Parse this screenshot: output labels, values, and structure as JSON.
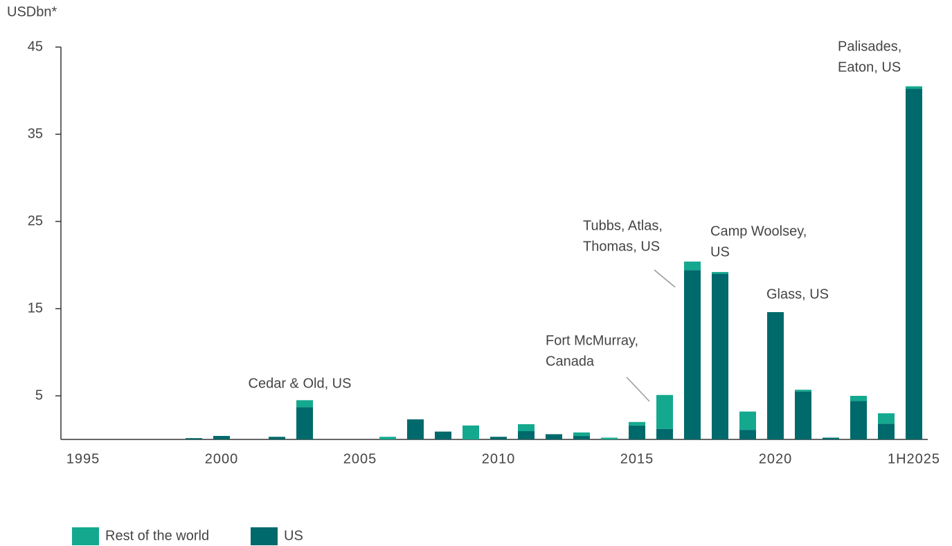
{
  "chart_data": {
    "type": "stacked_bar",
    "y_label": "USDbn*",
    "categories": [
      "1995",
      null,
      null,
      null,
      null,
      "2000",
      null,
      null,
      null,
      null,
      "2005",
      null,
      null,
      null,
      null,
      "2010",
      null,
      null,
      null,
      null,
      "2015",
      null,
      null,
      null,
      null,
      "2020",
      null,
      null,
      null,
      null,
      "1H2025"
    ],
    "series": [
      {
        "name": "Rest of the world",
        "color": "#14a98f",
        "values": [
          0,
          0,
          0,
          0,
          0,
          0,
          0,
          0,
          0.8,
          0,
          0,
          0.3,
          0,
          0,
          1.6,
          0,
          0.8,
          0,
          0.4,
          0.2,
          0.4,
          3.9,
          1.0,
          0.2,
          2.1,
          0,
          0.2,
          0,
          0.6,
          1.2,
          0.3
        ]
      },
      {
        "name": "US",
        "color": "#00696b",
        "values": [
          0,
          0,
          0,
          0,
          0.15,
          0.4,
          0,
          0.3,
          3.7,
          0,
          0,
          0,
          2.3,
          0.9,
          0,
          0.3,
          0.95,
          0.6,
          0.4,
          0,
          1.6,
          1.2,
          19.4,
          19.0,
          1.1,
          14.6,
          5.5,
          0.2,
          4.4,
          1.8,
          40.2
        ]
      }
    ],
    "annotations": [
      {
        "lines": [
          "Cedar & Old, US"
        ]
      },
      {
        "lines": [
          "Fort McMurray,",
          "Canada"
        ]
      },
      {
        "lines": [
          "Tubbs, Atlas,",
          "Thomas, US"
        ]
      },
      {
        "lines": [
          "Camp Woolsey,",
          "US"
        ]
      },
      {
        "lines": [
          "Glass, US"
        ]
      },
      {
        "lines": [
          "Palisades,",
          "Eaton, US"
        ]
      }
    ],
    "ylim": [
      0,
      45
    ],
    "yticks": [
      5,
      15,
      25,
      35,
      45
    ],
    "grid": false,
    "legend": "bottom-left"
  }
}
